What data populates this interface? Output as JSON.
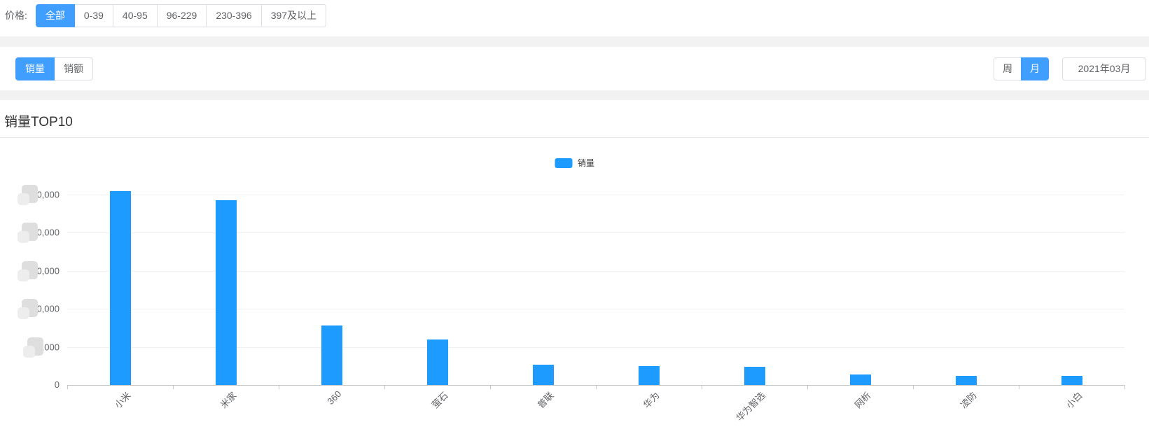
{
  "price_filter": {
    "label": "价格:",
    "options": [
      {
        "label": "全部",
        "active": true
      },
      {
        "label": "0-39",
        "active": false
      },
      {
        "label": "40-95",
        "active": false
      },
      {
        "label": "96-229",
        "active": false
      },
      {
        "label": "230-396",
        "active": false
      },
      {
        "label": "397及以上",
        "active": false
      }
    ]
  },
  "toolbar": {
    "metric_tabs": [
      {
        "label": "销量",
        "active": true
      },
      {
        "label": "销额",
        "active": false
      }
    ],
    "period_tabs": [
      {
        "label": "周",
        "active": false
      },
      {
        "label": "月",
        "active": true
      }
    ],
    "date_value": "2021年03月"
  },
  "chart_section": {
    "title": "销量TOP10"
  },
  "colors": {
    "accent": "#409eff",
    "bar": "#1e9bff",
    "gridline": "#f0f0f0",
    "axis": "#c6c9cc",
    "redaction": "#dedede",
    "gap_background": "#f2f2f2"
  },
  "chart_data": {
    "type": "bar",
    "title": "销量TOP10",
    "legend": [
      {
        "name": "销量",
        "color": "#1e9bff"
      }
    ],
    "legend_position": "top-center",
    "categories": [
      "小米",
      "米家",
      "360",
      "萤石",
      "普联",
      "华为",
      "华为智选",
      "网析",
      "凌防",
      "小白"
    ],
    "series": [
      {
        "name": "销量",
        "values": [
          255000,
          243000,
          78000,
          60000,
          27000,
          25000,
          24000,
          14000,
          12000,
          11500
        ]
      }
    ],
    "ylim": [
      0,
      250000
    ],
    "y_tick_step": 50000,
    "y_ticks": [
      {
        "value": 250000,
        "visible_label": "0,000",
        "redacted": true
      },
      {
        "value": 200000,
        "visible_label": "0,000",
        "redacted": true
      },
      {
        "value": 150000,
        "visible_label": "0,000",
        "redacted": true
      },
      {
        "value": 100000,
        "visible_label": "0,000",
        "redacted": true
      },
      {
        "value": 50000,
        "visible_label": ",000",
        "redacted": true
      },
      {
        "value": 0,
        "visible_label": "0",
        "redacted": false
      }
    ],
    "grid": true,
    "x_label_rotate": 45
  }
}
